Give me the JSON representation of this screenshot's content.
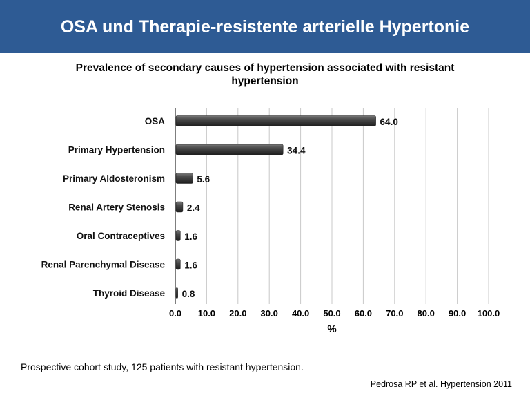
{
  "slide": {
    "title": "OSA und Therapie-resistente arterielle Hypertonie",
    "footnote": "Prospective cohort study, 125 patients with resistant hypertension.",
    "citation": "Pedrosa RP et al. Hypertension 2011"
  },
  "colors": {
    "header_bg": "#2e5b94",
    "bar": "#3a3a3a",
    "grid": "#c8c8c8"
  },
  "chart_data": {
    "type": "bar",
    "orientation": "horizontal",
    "title": "Prevalence of secondary causes of hypertension associated with resistant hypertension",
    "xlabel": "%",
    "ylabel": "",
    "categories": [
      "OSA",
      "Primary Hypertension",
      "Primary Aldosteronism",
      "Renal Artery Stenosis",
      "Oral Contraceptives",
      "Renal Parenchymal Disease",
      "Thyroid Disease"
    ],
    "values": [
      64.0,
      34.4,
      5.6,
      2.4,
      1.6,
      1.6,
      0.8
    ],
    "value_labels": [
      "64.0",
      "34.4",
      "5.6",
      "2.4",
      "1.6",
      "1.6",
      "0.8"
    ],
    "xlim": [
      0,
      100
    ],
    "xticks": [
      "0.0",
      "10.0",
      "20.0",
      "30.0",
      "40.0",
      "50.0",
      "60.0",
      "70.0",
      "80.0",
      "90.0",
      "100.0"
    ],
    "grid": true,
    "legend": "none"
  }
}
